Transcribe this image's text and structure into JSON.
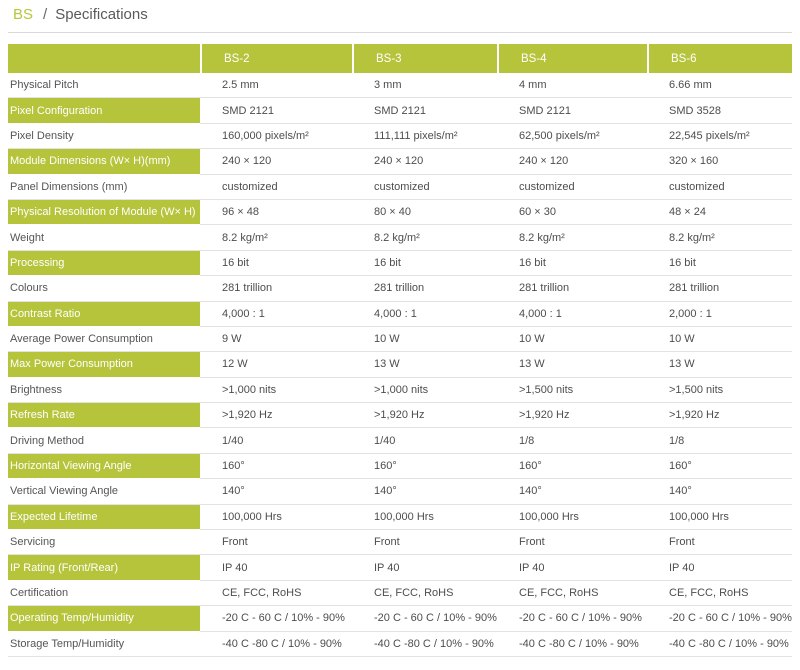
{
  "breadcrumb": {
    "section": "BS",
    "separator": "/",
    "page": "Specifications"
  },
  "table": {
    "headers": [
      "",
      "BS-2",
      "BS-3",
      "BS-4",
      "BS-6"
    ],
    "rows": [
      {
        "label": "Physical Pitch",
        "highlight": false,
        "values": [
          "2.5 mm",
          "3 mm",
          "4 mm",
          "6.66 mm"
        ]
      },
      {
        "label": "Pixel Configuration",
        "highlight": true,
        "values": [
          "SMD 2121",
          "SMD 2121",
          "SMD 2121",
          "SMD 3528"
        ]
      },
      {
        "label": "Pixel Density",
        "highlight": false,
        "values": [
          "160,000 pixels/m²",
          "111,111 pixels/m²",
          "62,500 pixels/m²",
          "22,545 pixels/m²"
        ]
      },
      {
        "label": "Module Dimensions (W× H)(mm)",
        "highlight": true,
        "values": [
          "240 × 120",
          "240 × 120",
          "240 × 120",
          "320 × 160"
        ]
      },
      {
        "label": "Panel Dimensions (mm)",
        "highlight": false,
        "values": [
          "customized",
          "customized",
          "customized",
          "customized"
        ]
      },
      {
        "label": "Physical Resolution of Module (W× H)",
        "highlight": true,
        "values": [
          "96 × 48",
          "80 × 40",
          "60 × 30",
          "48 × 24"
        ]
      },
      {
        "label": "Weight",
        "highlight": false,
        "values": [
          "8.2 kg/m²",
          "8.2 kg/m²",
          "8.2 kg/m²",
          "8.2 kg/m²"
        ]
      },
      {
        "label": "Processing",
        "highlight": true,
        "values": [
          "16 bit",
          "16 bit",
          "16 bit",
          "16 bit"
        ]
      },
      {
        "label": "Colours",
        "highlight": false,
        "values": [
          "281 trillion",
          "281 trillion",
          "281 trillion",
          "281 trillion"
        ]
      },
      {
        "label": "Contrast Ratio",
        "highlight": true,
        "values": [
          "4,000 : 1",
          "4,000 : 1",
          "4,000 : 1",
          "2,000 : 1"
        ]
      },
      {
        "label": "Average Power Consumption",
        "highlight": false,
        "values": [
          "9 W",
          "10 W",
          "10 W",
          "10 W"
        ]
      },
      {
        "label": "Max Power Consumption",
        "highlight": true,
        "values": [
          "12 W",
          "13 W",
          "13 W",
          "13 W"
        ]
      },
      {
        "label": "Brightness",
        "highlight": false,
        "values": [
          ">1,000 nits",
          ">1,000 nits",
          ">1,500 nits",
          ">1,500 nits"
        ]
      },
      {
        "label": "Refresh Rate",
        "highlight": true,
        "values": [
          ">1,920 Hz",
          ">1,920 Hz",
          ">1,920 Hz",
          ">1,920 Hz"
        ]
      },
      {
        "label": "Driving Method",
        "highlight": false,
        "values": [
          "1/40",
          "1/40",
          "1/8",
          "1/8"
        ]
      },
      {
        "label": "Horizontal Viewing Angle",
        "highlight": true,
        "values": [
          "160°",
          "160°",
          "160°",
          "160°"
        ]
      },
      {
        "label": "Vertical Viewing Angle",
        "highlight": false,
        "values": [
          "140°",
          "140°",
          "140°",
          "140°"
        ]
      },
      {
        "label": "Expected Lifetime",
        "highlight": true,
        "values": [
          "100,000 Hrs",
          "100,000 Hrs",
          "100,000 Hrs",
          "100,000 Hrs"
        ]
      },
      {
        "label": "Servicing",
        "highlight": false,
        "values": [
          "Front",
          "Front",
          "Front",
          "Front"
        ]
      },
      {
        "label": "IP Rating (Front/Rear)",
        "highlight": true,
        "values": [
          "IP 40",
          "IP 40",
          "IP 40",
          "IP 40"
        ]
      },
      {
        "label": "Certification",
        "highlight": false,
        "values": [
          "CE, FCC, RoHS",
          "CE, FCC, RoHS",
          "CE, FCC, RoHS",
          "CE, FCC, RoHS"
        ]
      },
      {
        "label": "Operating Temp/Humidity",
        "highlight": true,
        "values": [
          "-20 C - 60 C / 10% - 90%",
          "-20 C - 60 C / 10% - 90%",
          "-20 C - 60 C / 10% - 90%",
          "-20 C - 60 C / 10% - 90%"
        ]
      },
      {
        "label": "Storage Temp/Humidity",
        "highlight": false,
        "values": [
          "-40 C -80 C / 10% - 90%",
          "-40 C -80 C / 10% - 90%",
          "-40 C -80 C / 10% - 90%",
          "-40 C -80 C / 10% - 90%"
        ]
      }
    ]
  }
}
